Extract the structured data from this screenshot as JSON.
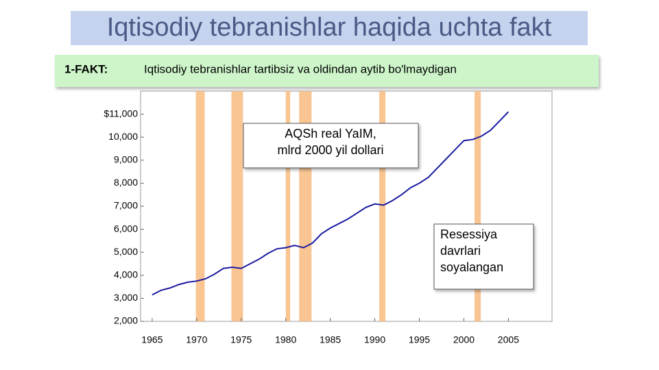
{
  "header": {
    "title": "Iqtisodiy tebranishlar haqida uchta fakt"
  },
  "fact": {
    "label": "1-FAKT:",
    "text": "Iqtisodiy tebranishlar tartibsiz va oldindan aytib bo'lmaydigan"
  },
  "chart_data": {
    "type": "line",
    "x": [
      1965,
      1966,
      1967,
      1968,
      1969,
      1970,
      1971,
      1972,
      1973,
      1974,
      1975,
      1976,
      1977,
      1978,
      1979,
      1980,
      1981,
      1982,
      1983,
      1984,
      1985,
      1986,
      1987,
      1988,
      1989,
      1990,
      1991,
      1992,
      1993,
      1994,
      1995,
      1996,
      1997,
      1998,
      1999,
      2000,
      2001,
      2002,
      2003,
      2004,
      2005
    ],
    "series": [
      {
        "color": "#1a1aa0",
        "values": [
          3150,
          3350,
          3450,
          3600,
          3700,
          3750,
          3850,
          4050,
          4300,
          4350,
          4300,
          4500,
          4700,
          4950,
          5150,
          5200,
          5300,
          5200,
          5400,
          5800,
          6050,
          6250,
          6450,
          6700,
          6950,
          7100,
          7050,
          7250,
          7500,
          7800,
          8000,
          8250,
          8650,
          9050,
          9450,
          9850,
          9900,
          10050,
          10300,
          10700,
          11100
        ]
      }
    ],
    "recessions": [
      [
        1969.9,
        1970.9
      ],
      [
        1973.9,
        1975.2
      ],
      [
        1980.0,
        1980.5
      ],
      [
        1981.5,
        1982.9
      ],
      [
        1990.5,
        1991.2
      ],
      [
        2001.2,
        2001.9
      ]
    ],
    "recession_color": "#f8b878",
    "xlim": [
      1963.7,
      2009.9
    ],
    "xticks": [
      1965,
      1970,
      1975,
      1980,
      1985,
      1990,
      1995,
      2000,
      2005
    ],
    "ylim": [
      2000,
      12000
    ],
    "yticks": [
      {
        "value": 2000,
        "label": "2,000"
      },
      {
        "value": 3000,
        "label": "3,000"
      },
      {
        "value": 4000,
        "label": "4,000"
      },
      {
        "value": 5000,
        "label": "5,000"
      },
      {
        "value": 6000,
        "label": "6,000"
      },
      {
        "value": 7000,
        "label": "7,000"
      },
      {
        "value": 8000,
        "label": "8,000"
      },
      {
        "value": 9000,
        "label": "9,000"
      },
      {
        "value": 10000,
        "label": "10,000"
      },
      {
        "value": 11000,
        "label": "$11,000"
      }
    ],
    "annotations": [
      {
        "lines": [
          "AQSh real YaIM,",
          "mlrd 2000 yil dollari"
        ]
      },
      {
        "lines": [
          "Resessiya",
          "davrlari",
          "soyalangan"
        ]
      }
    ]
  }
}
